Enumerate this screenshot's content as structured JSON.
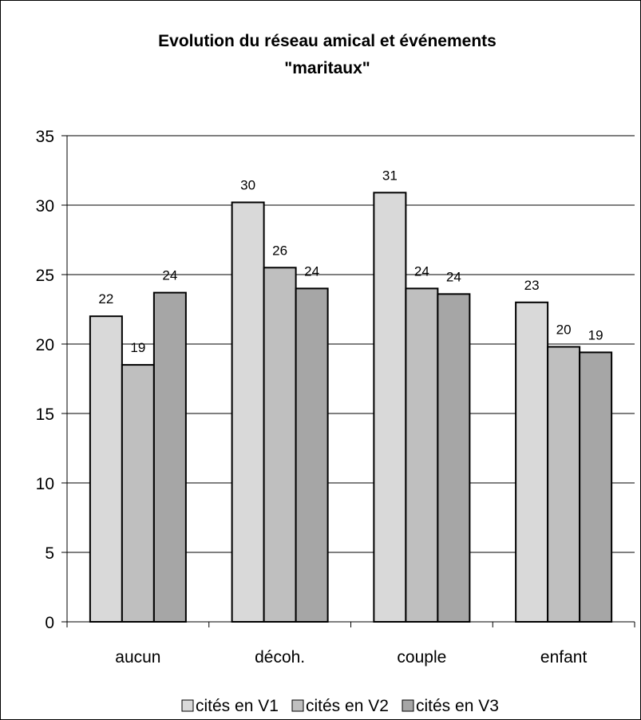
{
  "chart_data": {
    "type": "bar",
    "title_lines": [
      "Evolution du réseau amical et événements",
      "\"maritaux\""
    ],
    "categories": [
      "aucun",
      "décoh.",
      "couple",
      "enfant"
    ],
    "series": [
      {
        "name": "cités en V1",
        "values": [
          22,
          30.2,
          30.9,
          23
        ],
        "labels": [
          "22",
          "30",
          "31",
          "23"
        ],
        "color": "#d9d9d9"
      },
      {
        "name": "cités en V2",
        "values": [
          18.5,
          25.5,
          24,
          19.8
        ],
        "labels": [
          "19",
          "26",
          "24",
          "20"
        ],
        "color": "#bfbfbf"
      },
      {
        "name": "cités en V3",
        "values": [
          23.7,
          24,
          23.6,
          19.4
        ],
        "labels": [
          "24",
          "24",
          "24",
          "19"
        ],
        "color": "#a6a6a6"
      }
    ],
    "y_ticks": [
      "0",
      "5",
      "10",
      "15",
      "20",
      "25",
      "30",
      "35"
    ],
    "ylim": [
      0,
      35
    ],
    "grid": true,
    "legend_position": "bottom"
  }
}
